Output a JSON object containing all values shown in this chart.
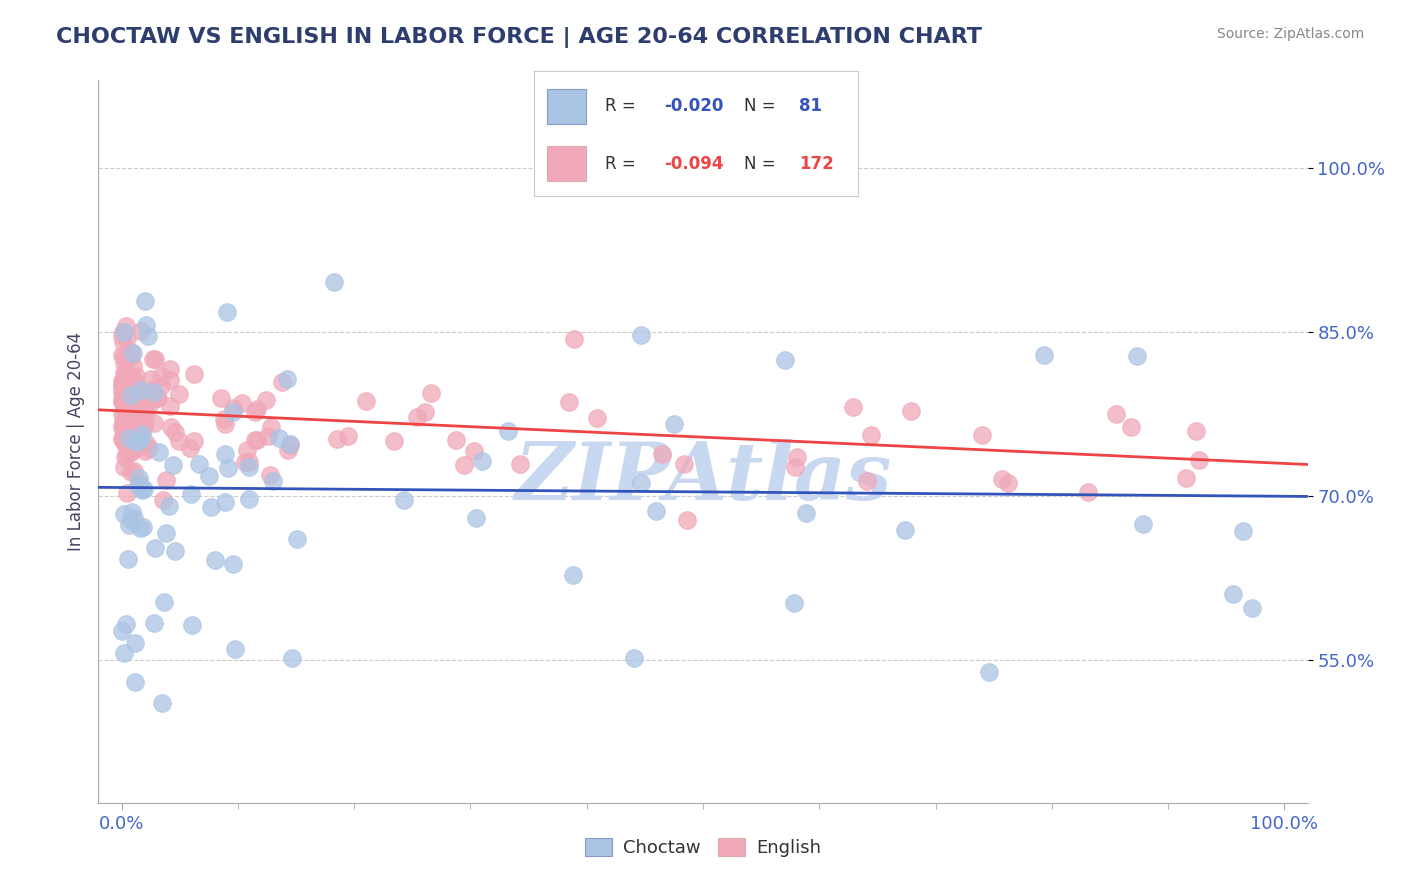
{
  "title": "CHOCTAW VS ENGLISH IN LABOR FORCE | AGE 20-64 CORRELATION CHART",
  "source_text": "Source: ZipAtlas.com",
  "ylabel": "In Labor Force | Age 20-64",
  "background_color": "#ffffff",
  "grid_color": "#cccccc",
  "title_color": "#2d3e6e",
  "axis_color": "#4466cc",
  "source_color": "#888888",
  "watermark_text": "ZIPAtlas",
  "watermark_color": "#c8d8f0",
  "choctaw_color": "#aac4e4",
  "english_color": "#f0a8b8",
  "choctaw_line_color": "#3355bb",
  "english_line_color": "#ee4444",
  "legend_choctaw_label": "Choctaw",
  "legend_english_label": "English",
  "choctaw_R": "-0.020",
  "choctaw_N": "81",
  "english_R": "-0.094",
  "english_N": "172",
  "ytick_color": "#4466cc",
  "xtick_color": "#4466cc"
}
